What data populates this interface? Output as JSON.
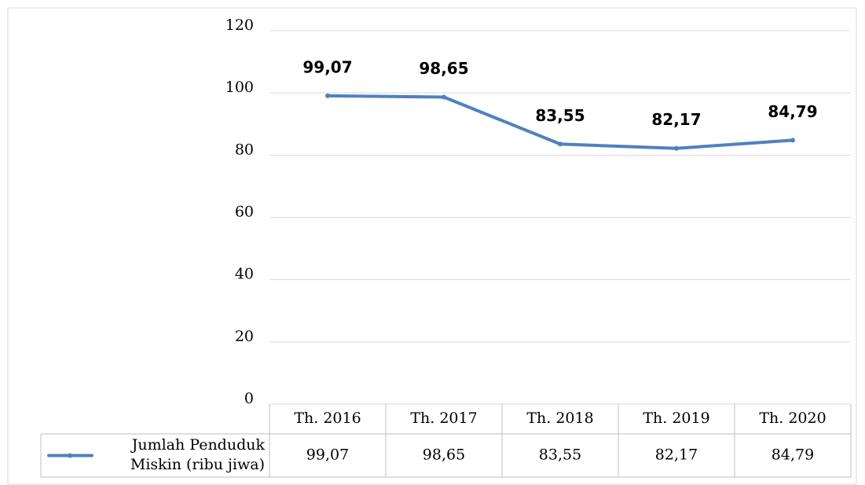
{
  "chart_data": {
    "type": "line",
    "categories": [
      "Th. 2016",
      "Th. 2017",
      "Th. 2018",
      "Th. 2019",
      "Th. 2020"
    ],
    "series": [
      {
        "name": "Jumlah Penduduk Miskin (ribu jiwa)",
        "color": "#4f81bd",
        "values": [
          99.07,
          98.65,
          83.55,
          82.17,
          84.79
        ],
        "value_labels": [
          "99,07",
          "98,65",
          "83,55",
          "82,17",
          "84,79"
        ]
      }
    ],
    "ylim": [
      0,
      120
    ],
    "yticks": [
      0,
      20,
      40,
      60,
      80,
      100,
      120
    ],
    "grid": true,
    "data_table": true
  }
}
